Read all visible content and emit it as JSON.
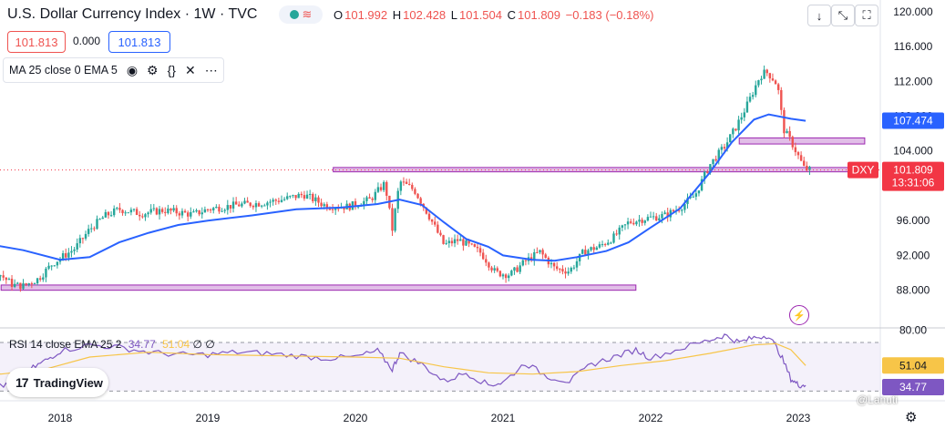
{
  "header": {
    "title": "U.S. Dollar Currency Index · 1W · TVC",
    "market_icon": "market-status-icon",
    "ohlc": {
      "o_label": "O",
      "o": "101.992",
      "h_label": "H",
      "h": "102.428",
      "l_label": "L",
      "l": "101.504",
      "c_label": "C",
      "c": "101.809",
      "change": "−0.183 (−0.18%)"
    },
    "sell": "101.813",
    "spread": "0.000",
    "buy": "101.813"
  },
  "indicator": {
    "label": "MA 25 close 0 EMA 5",
    "icons": [
      "eye-icon",
      "gear-icon",
      "braces-icon",
      "close-icon",
      "more-icon"
    ]
  },
  "toolbar": {
    "icons": [
      "arrow-down-icon",
      "collapse-icon",
      "fullscreen-icon"
    ]
  },
  "rsi": {
    "label": "RSI 14 close EMA 25 2",
    "value": "34.77",
    "ema_value": "51.04",
    "extra": "∅ ∅"
  },
  "branding": {
    "logo": "17",
    "name": "TradingView",
    "watermark": "@Lanuti"
  },
  "colors": {
    "up": "#26a69a",
    "down": "#ef5350",
    "ma": "#2962ff",
    "zone": "#e1bee7",
    "zone_border": "#9c27b0",
    "rsi": "#7e57c2",
    "rsi_ema": "#f7c548",
    "price_tag": "#f23645"
  },
  "chart_data": {
    "type": "candlestick",
    "symbol": "DXY",
    "interval": "1W",
    "x_ticks": [
      "2018",
      "2019",
      "2020",
      "2021",
      "2022",
      "2023"
    ],
    "y_ticks": [
      "120.000",
      "116.000",
      "112.000",
      "108.000",
      "104.000",
      "96.000",
      "92.000",
      "88.000"
    ],
    "ylim": [
      86.5,
      120.5
    ],
    "price_labels": {
      "ma_value": "107.474",
      "last_symbol": "DXY",
      "last_price": "101.809",
      "countdown": "13:31:06"
    },
    "ma_series": [
      [
        2017.0,
        100.6
      ],
      [
        2017.15,
        97.6
      ],
      [
        2017.35,
        94.9
      ],
      [
        2017.55,
        93.2
      ],
      [
        2017.75,
        92.6
      ],
      [
        2018.0,
        91.5
      ],
      [
        2018.2,
        91.8
      ],
      [
        2018.4,
        93.5
      ],
      [
        2018.6,
        94.6
      ],
      [
        2018.8,
        95.5
      ],
      [
        2019.0,
        96.0
      ],
      [
        2019.3,
        96.6
      ],
      [
        2019.6,
        97.3
      ],
      [
        2019.9,
        97.5
      ],
      [
        2020.15,
        97.9
      ],
      [
        2020.3,
        98.4
      ],
      [
        2020.45,
        97.8
      ],
      [
        2020.6,
        95.8
      ],
      [
        2020.75,
        93.9
      ],
      [
        2020.9,
        93.0
      ],
      [
        2021.0,
        92.0
      ],
      [
        2021.2,
        91.5
      ],
      [
        2021.35,
        91.4
      ],
      [
        2021.5,
        91.8
      ],
      [
        2021.7,
        92.5
      ],
      [
        2021.85,
        93.5
      ],
      [
        2022.0,
        95.2
      ],
      [
        2022.2,
        97.4
      ],
      [
        2022.4,
        101.5
      ],
      [
        2022.55,
        105.0
      ],
      [
        2022.7,
        107.6
      ],
      [
        2022.8,
        108.2
      ],
      [
        2022.95,
        107.7
      ],
      [
        2023.05,
        107.47
      ]
    ],
    "price_path": [
      [
        2017.0,
        94.5
      ],
      [
        2017.1,
        92.8
      ],
      [
        2017.2,
        94.7
      ],
      [
        2017.3,
        93.4
      ],
      [
        2017.4,
        92.1
      ],
      [
        2017.5,
        91.5
      ],
      [
        2017.6,
        89.7
      ],
      [
        2017.68,
        88.6
      ],
      [
        2017.75,
        88.5
      ],
      [
        2017.85,
        89.3
      ],
      [
        2017.95,
        91.1
      ],
      [
        2018.1,
        92.8
      ],
      [
        2018.2,
        95.0
      ],
      [
        2018.3,
        96.5
      ],
      [
        2018.4,
        97.3
      ],
      [
        2018.55,
        96.8
      ],
      [
        2018.7,
        97.2
      ],
      [
        2018.9,
        96.7
      ],
      [
        2019.0,
        97.3
      ],
      [
        2019.2,
        97.8
      ],
      [
        2019.35,
        98.0
      ],
      [
        2019.5,
        98.4
      ],
      [
        2019.65,
        99.0
      ],
      [
        2019.8,
        97.7
      ],
      [
        2019.95,
        97.6
      ],
      [
        2020.1,
        98.4
      ],
      [
        2020.2,
        100.3
      ],
      [
        2020.25,
        95.0
      ],
      [
        2020.3,
        100.5
      ],
      [
        2020.4,
        99.5
      ],
      [
        2020.5,
        96.5
      ],
      [
        2020.6,
        93.2
      ],
      [
        2020.7,
        93.8
      ],
      [
        2020.85,
        92.3
      ],
      [
        2020.95,
        90.0
      ],
      [
        2021.05,
        89.8
      ],
      [
        2021.15,
        91.3
      ],
      [
        2021.25,
        92.4
      ],
      [
        2021.35,
        90.5
      ],
      [
        2021.45,
        90.2
      ],
      [
        2021.55,
        92.5
      ],
      [
        2021.65,
        93.0
      ],
      [
        2021.75,
        94.1
      ],
      [
        2021.85,
        95.8
      ],
      [
        2021.95,
        96.2
      ],
      [
        2022.1,
        96.6
      ],
      [
        2022.2,
        97.5
      ],
      [
        2022.3,
        98.9
      ],
      [
        2022.4,
        102.4
      ],
      [
        2022.5,
        104.5
      ],
      [
        2022.58,
        106.8
      ],
      [
        2022.66,
        109.5
      ],
      [
        2022.74,
        112.6
      ],
      [
        2022.78,
        113.1
      ],
      [
        2022.82,
        112.5
      ],
      [
        2022.86,
        111.5
      ],
      [
        2022.9,
        106.5
      ],
      [
        2022.96,
        104.8
      ],
      [
        2023.0,
        103.4
      ],
      [
        2023.04,
        102.0
      ],
      [
        2023.08,
        101.8
      ]
    ],
    "zones": [
      {
        "x_from": 2017.6,
        "x_to": 2021.9,
        "y_from": 88.0,
        "y_to": 88.6
      },
      {
        "x_from": 2019.85,
        "x_to": 2023.35,
        "y_from": 101.6,
        "y_to": 102.1
      },
      {
        "x_from": 2022.6,
        "x_to": 2023.45,
        "y_from": 104.8,
        "y_to": 105.5
      }
    ],
    "rsi": {
      "ylim": [
        22,
        82
      ],
      "upper": 70,
      "lower": 30,
      "ticks": [
        "80.00"
      ],
      "rsi_series": [
        [
          2017.0,
          40
        ],
        [
          2017.1,
          38
        ],
        [
          2017.2,
          55
        ],
        [
          2017.3,
          52
        ],
        [
          2017.4,
          42
        ],
        [
          2017.5,
          45
        ],
        [
          2017.6,
          35
        ],
        [
          2017.7,
          33
        ],
        [
          2017.8,
          48
        ],
        [
          2017.9,
          55
        ],
        [
          2018.0,
          63
        ],
        [
          2018.2,
          68
        ],
        [
          2018.4,
          66
        ],
        [
          2018.6,
          62
        ],
        [
          2018.8,
          60
        ],
        [
          2019.0,
          60
        ],
        [
          2019.2,
          62
        ],
        [
          2019.4,
          61
        ],
        [
          2019.6,
          59
        ],
        [
          2019.8,
          57
        ],
        [
          2020.0,
          58
        ],
        [
          2020.15,
          63
        ],
        [
          2020.25,
          48
        ],
        [
          2020.3,
          61
        ],
        [
          2020.45,
          52
        ],
        [
          2020.6,
          38
        ],
        [
          2020.75,
          45
        ],
        [
          2020.9,
          35
        ],
        [
          2021.0,
          37
        ],
        [
          2021.15,
          53
        ],
        [
          2021.3,
          42
        ],
        [
          2021.45,
          38
        ],
        [
          2021.6,
          52
        ],
        [
          2021.75,
          58
        ],
        [
          2021.9,
          64
        ],
        [
          2022.0,
          57
        ],
        [
          2022.2,
          65
        ],
        [
          2022.4,
          72
        ],
        [
          2022.5,
          76
        ],
        [
          2022.6,
          70
        ],
        [
          2022.7,
          74
        ],
        [
          2022.8,
          76
        ],
        [
          2022.88,
          60
        ],
        [
          2022.95,
          40
        ],
        [
          2023.0,
          35
        ],
        [
          2023.05,
          34.77
        ]
      ],
      "ema_series": [
        [
          2017.0,
          48
        ],
        [
          2017.3,
          47
        ],
        [
          2017.6,
          44
        ],
        [
          2017.9,
          48
        ],
        [
          2018.2,
          58
        ],
        [
          2018.6,
          62
        ],
        [
          2019.0,
          60
        ],
        [
          2019.5,
          59
        ],
        [
          2020.0,
          58
        ],
        [
          2020.3,
          57
        ],
        [
          2020.6,
          50
        ],
        [
          2020.9,
          45
        ],
        [
          2021.2,
          44
        ],
        [
          2021.5,
          46
        ],
        [
          2021.8,
          51
        ],
        [
          2022.1,
          55
        ],
        [
          2022.4,
          61
        ],
        [
          2022.7,
          68
        ],
        [
          2022.85,
          69
        ],
        [
          2022.95,
          64
        ],
        [
          2023.05,
          51.04
        ]
      ]
    }
  }
}
